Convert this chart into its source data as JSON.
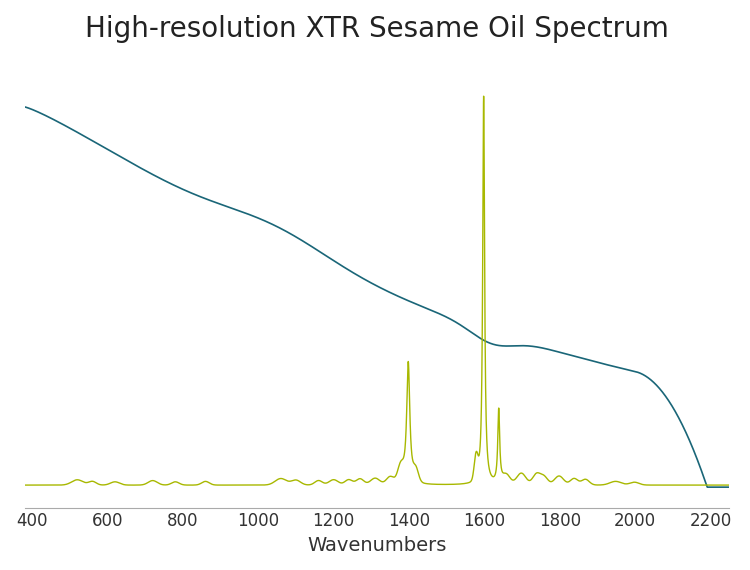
{
  "title": "High-resolution XTR Sesame Oil Spectrum",
  "xlabel": "Wavenumbers",
  "xlim": [
    380,
    2250
  ],
  "ylim": [
    -0.05,
    1.05
  ],
  "blue_color": "#1a6678",
  "green_color": "#a8b800",
  "background_color": "#ffffff",
  "title_fontsize": 20,
  "xlabel_fontsize": 14,
  "tick_fontsize": 12,
  "xticks": [
    400,
    600,
    800,
    1000,
    1200,
    1400,
    1600,
    1800,
    2000,
    2200
  ]
}
